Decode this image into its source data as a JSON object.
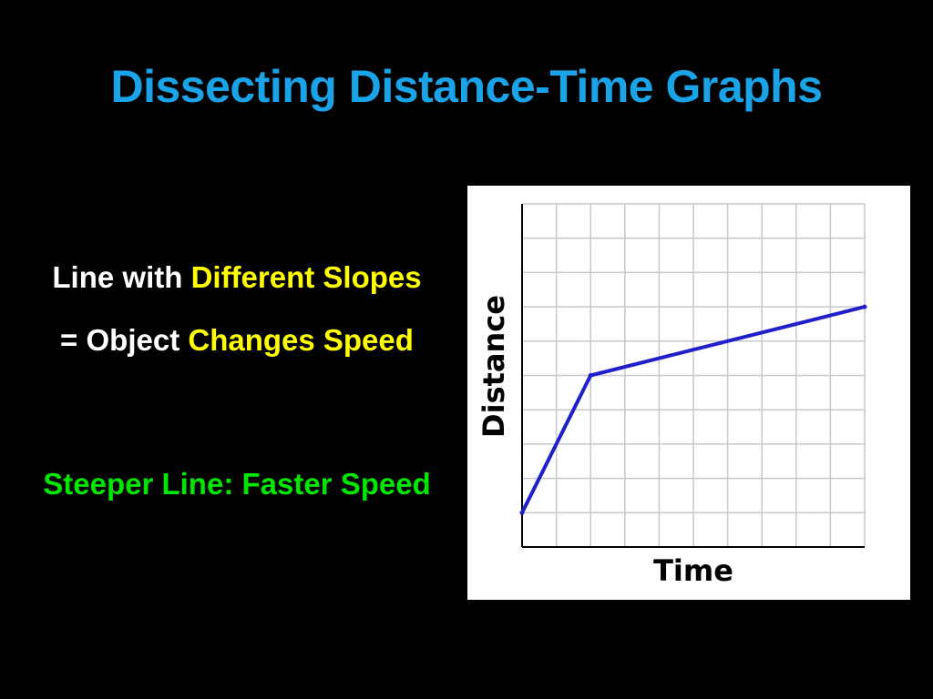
{
  "slide": {
    "title": "Dissecting Distance-Time Graphs",
    "line1": {
      "plain": "Line with ",
      "highlight": "Different Slopes"
    },
    "line2": {
      "plain": "= Object ",
      "highlight": "Changes Speed"
    },
    "line3": "Steeper Line: Faster Speed"
  },
  "colors": {
    "title": "#1ba3e8",
    "highlight": "#ffff00",
    "note": "#00e600",
    "line": "#1f1fcc",
    "grid": "#c8c8c8"
  },
  "chart_data": {
    "type": "line",
    "xlabel": "Time",
    "ylabel": "Distance",
    "xlim": [
      0,
      10
    ],
    "ylim": [
      0,
      10
    ],
    "grid": true,
    "series": [
      {
        "x": [
          0,
          2,
          10
        ],
        "y": [
          1,
          5,
          7
        ]
      }
    ]
  }
}
